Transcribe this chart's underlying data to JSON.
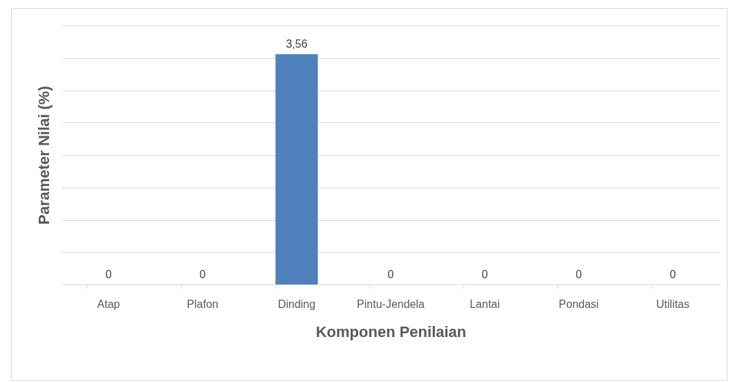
{
  "chart_data": {
    "type": "bar",
    "xlabel": "Komponen Penilaian",
    "ylabel": "Parameter Nilai (%)",
    "categories": [
      "Atap",
      "Plafon",
      "Dinding",
      "Pintu-Jendela",
      "Lantai",
      "Pondasi",
      "Utilitas"
    ],
    "values": [
      0,
      0,
      3.56,
      0,
      0,
      0,
      0
    ],
    "color": "#4f81bd",
    "value_labels": [
      "0",
      "0",
      "3,56",
      "0",
      "0",
      "0",
      "0"
    ],
    "grid": "y",
    "tick_labels": "x"
  }
}
